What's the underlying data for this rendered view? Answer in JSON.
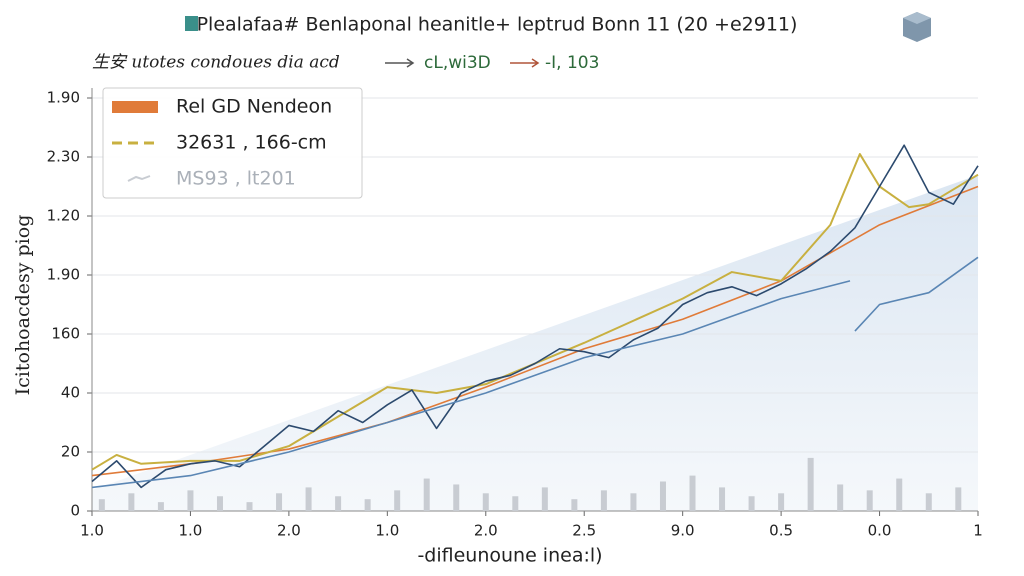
{
  "chart_data": {
    "type": "line",
    "title": "Plealafaa# Benlaponal heanitle+ leptrud Bonn 11 (20 +e2911)",
    "subtitle": "生安 utotes condoues dia acd",
    "annotations": [
      "cL,wi3D",
      "-I, 103"
    ],
    "x_label": "-difleunoune inea:l)",
    "y_label": "Icitohoacdesy piog",
    "xlim": [
      0,
      9
    ],
    "xticks": [
      {
        "value": 0,
        "label": "1.0"
      },
      {
        "value": 1,
        "label": "1.0"
      },
      {
        "value": 2,
        "label": "2.0"
      },
      {
        "value": 3,
        "label": "1.0"
      },
      {
        "value": 4,
        "label": "2.0"
      },
      {
        "value": 5,
        "label": "2.5"
      },
      {
        "value": 6,
        "label": "9.0"
      },
      {
        "value": 7,
        "label": "0.5"
      },
      {
        "value": 8,
        "label": "0.0"
      },
      {
        "value": 9,
        "label": "1"
      }
    ],
    "ylim": [
      0,
      140
    ],
    "yticks": [
      0,
      20,
      40,
      {
        "value": 60,
        "label": "160"
      },
      {
        "value": 80,
        "label": "1.90"
      },
      {
        "value": 100,
        "label": "1.20"
      },
      {
        "value": 120,
        "label": "2.30"
      },
      {
        "value": 140,
        "label": "1.90"
      }
    ],
    "grid": true,
    "legend": "upper left",
    "series": [
      {
        "name": "Rel GD Nendeon",
        "color": "#e07b39",
        "x": [
          0,
          1,
          2,
          3,
          4,
          5,
          6,
          7,
          8,
          9
        ],
        "values": [
          12,
          16,
          21,
          30,
          42,
          55,
          65,
          78,
          97,
          110
        ]
      },
      {
        "name": "32631 , 166-cm",
        "color": "#c8b040",
        "dashed": true,
        "x": [
          0,
          0.25,
          0.5,
          1,
          1.5,
          2,
          3,
          3.5,
          4,
          5,
          6,
          6.5,
          7,
          7.5,
          7.8,
          8,
          8.3,
          8.5,
          9
        ],
        "values": [
          14,
          19,
          16,
          17,
          17,
          22,
          42,
          40,
          43,
          57,
          72,
          81,
          78,
          97,
          121,
          110,
          103,
          104,
          114
        ]
      },
      {
        "name": "MS93 , lt201",
        "color": "#c8ccd2",
        "kind": "bar",
        "x": [
          0.1,
          0.4,
          0.7,
          1.0,
          1.3,
          1.6,
          1.9,
          2.2,
          2.5,
          2.8,
          3.1,
          3.4,
          3.7,
          4.0,
          4.3,
          4.6,
          4.9,
          5.2,
          5.5,
          5.8,
          6.1,
          6.4,
          6.7,
          7.0,
          7.3,
          7.6,
          7.9,
          8.2,
          8.5,
          8.8
        ],
        "values": [
          4,
          6,
          3,
          7,
          5,
          3,
          6,
          8,
          5,
          4,
          7,
          11,
          9,
          6,
          5,
          8,
          4,
          7,
          6,
          10,
          12,
          8,
          5,
          6,
          18,
          9,
          7,
          11,
          6,
          8
        ]
      },
      {
        "color": "#2c4a6e",
        "x": [
          0,
          0.25,
          0.5,
          0.75,
          1,
          1.25,
          1.5,
          1.75,
          2,
          2.25,
          2.5,
          2.75,
          3,
          3.25,
          3.5,
          3.75,
          4,
          4.25,
          4.5,
          4.75,
          5,
          5.25,
          5.5,
          5.75,
          6,
          6.25,
          6.5,
          6.75,
          7,
          7.25,
          7.5,
          7.75,
          8,
          8.25,
          8.5,
          8.75,
          9
        ],
        "values": [
          10,
          17,
          8,
          14,
          16,
          17,
          15,
          22,
          29,
          27,
          34,
          30,
          36,
          41,
          28,
          40,
          44,
          46,
          50,
          55,
          54,
          52,
          58,
          62,
          70,
          74,
          76,
          73,
          77,
          82,
          88,
          96,
          110,
          124,
          108,
          104,
          117
        ]
      },
      {
        "color": "#5a86b4",
        "x": [
          0,
          1,
          2,
          3,
          4,
          5,
          6,
          6.5,
          7,
          7.7,
          7.72,
          7.75,
          8,
          8.5,
          9
        ],
        "values": [
          8,
          12,
          20,
          30,
          40,
          52,
          60,
          66,
          72,
          78,
          null,
          61,
          70,
          74,
          86
        ]
      }
    ]
  }
}
